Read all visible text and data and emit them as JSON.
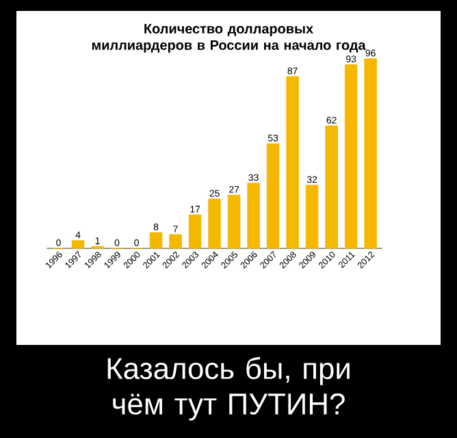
{
  "chart_data": {
    "type": "bar",
    "title": "Количество долларовых миллиардеров в России на начало года",
    "categories": [
      "1996",
      "1997",
      "1998",
      "1999",
      "2000",
      "2001",
      "2002",
      "2003",
      "2004",
      "2005",
      "2006",
      "2007",
      "2008",
      "2009",
      "2010",
      "2011",
      "2012"
    ],
    "values": [
      0,
      4,
      1,
      0,
      0,
      8,
      7,
      17,
      25,
      27,
      33,
      53,
      87,
      32,
      62,
      93,
      96
    ],
    "color": "#f5b800",
    "data_labels": true,
    "annotations": [
      "Казалось бы, при чём тут ПУТИН?"
    ]
  }
}
